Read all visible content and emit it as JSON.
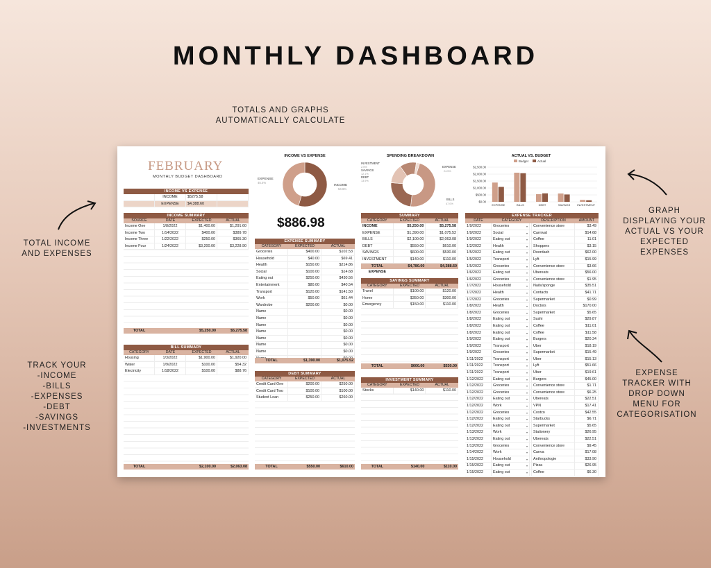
{
  "headline": "MONTHLY DASHBOARD",
  "notes": {
    "top": "TOTALS AND GRAPHS\nAUTOMATICALLY CALCULATE",
    "left_top": "TOTAL INCOME\nAND EXPENSES",
    "left_bottom": "TRACK YOUR\n-INCOME\n-BILLS\n-EXPENSES\n-DEBT\n-SAVINGS\n-INVESTMENTS",
    "right_top": "GRAPH\nDISPLAYING YOUR\nACTUAL VS YOUR\nEXPECTED\nEXPENSES",
    "right_bottom": "EXPENSE\nTRACKER WITH\nDROP DOWN\nMENU FOR\nCATEGORISATION"
  },
  "colors": {
    "brown": "#8e5a44",
    "tan": "#d9b3a1",
    "light": "#ecd5c8",
    "month": "#c79a85"
  },
  "dashboard": {
    "month": "FEBRUARY",
    "subtitle": "MONTHLY BUDGET DASHBOARD",
    "balance": "$886.98",
    "income_vs_expense": {
      "title": "INCOME VS EXPENSE",
      "rows": [
        [
          "INCOME",
          "$5275.58"
        ],
        [
          "EXPENSE",
          "$4,388.60"
        ]
      ]
    },
    "income_summary": {
      "title": "INCOME SUMMARY",
      "headers": [
        "SOURCE",
        "DATE",
        "EXPECTED",
        "ACTUAL"
      ],
      "rows": [
        [
          "Income One",
          "1/8/2022",
          "$1,400.00",
          "$1,291.60"
        ],
        [
          "Income Two",
          "1/14/2022",
          "$400.00",
          "$389.78"
        ],
        [
          "Income Three",
          "1/22/2022",
          "$250.00",
          "$365.30"
        ],
        [
          "Income Four",
          "1/24/2022",
          "$3,200.00",
          "$3,228.90"
        ]
      ],
      "total": [
        "TOTAL",
        "",
        "$5,250.00",
        "$5,275.58"
      ]
    },
    "bill_summary": {
      "title": "BILL SUMMARY",
      "headers": [
        "CATEGORY",
        "DATE",
        "EXPECTED",
        "ACTUAL"
      ],
      "rows": [
        [
          "Housing",
          "1/3/2022",
          "$1,900.00",
          "$1,920.00"
        ],
        [
          "Water",
          "1/9/2022",
          "$100.00",
          "$54.32"
        ],
        [
          "Electricity",
          "1/18/2022",
          "$100.00",
          "$88.76"
        ]
      ],
      "total": [
        "TOTAL",
        "",
        "$2,100.00",
        "$2,063.08"
      ]
    },
    "expense_summary": {
      "title": "EXPENSE SUMMARY",
      "headers": [
        "CATEGORY",
        "EXPECTED",
        "ACTUAL"
      ],
      "rows": [
        [
          "Groceries",
          "$400.00",
          "$102.53"
        ],
        [
          "Household",
          "$40.00",
          "$69.41"
        ],
        [
          "Health",
          "$150.00",
          "$214.86"
        ],
        [
          "Social",
          "$100.00",
          "$14.68"
        ],
        [
          "Eating out",
          "$250.00",
          "$430.56"
        ],
        [
          "Entertainment",
          "$80.00",
          "$40.54"
        ],
        [
          "Transport",
          "$120.00",
          "$141.50"
        ],
        [
          "Work",
          "$50.00",
          "$61.44"
        ],
        [
          "Wardrobe",
          "$200.00",
          "$0.00"
        ],
        [
          "Name",
          "",
          "$0.00"
        ],
        [
          "Name",
          "",
          "$0.00"
        ],
        [
          "Name",
          "",
          "$0.00"
        ],
        [
          "Name",
          "",
          "$0.00"
        ],
        [
          "Name",
          "",
          "$0.00"
        ],
        [
          "Name",
          "",
          "$0.00"
        ],
        [
          "Name",
          "",
          "$0.00"
        ],
        [
          "Name",
          "",
          "$0.00"
        ]
      ],
      "total": [
        "TOTAL",
        "$1,390.00",
        "$1,075.52"
      ]
    },
    "debt_summary": {
      "title": "DEBT SUMMARY",
      "headers": [
        "CATEGORY",
        "EXPECTED",
        "ACTUAL"
      ],
      "rows": [
        [
          "Credit Card One",
          "$200.00",
          "$250.00"
        ],
        [
          "Credit Card Two",
          "$100.00",
          "$100.00"
        ],
        [
          "Student Loan",
          "$250.00",
          "$260.00"
        ]
      ],
      "total": [
        "TOTAL",
        "$550.00",
        "$610.00"
      ]
    },
    "summary": {
      "title": "SUMMARY",
      "headers": [
        "CATEGORY",
        "EXPECTED",
        "ACTUAL"
      ],
      "rows": [
        [
          "INCOME",
          "$5,250.00",
          "$5,275.58"
        ],
        [
          "EXPENSE",
          "$1,390.00",
          "$1,075.52"
        ],
        [
          "BILLS",
          "$2,100.00",
          "$2,063.08"
        ],
        [
          "DEBT",
          "$550.00",
          "$610.00"
        ],
        [
          "SAVINGS",
          "$600.00",
          "$530.00"
        ],
        [
          "INVESTMENT",
          "$140.00",
          "$110.00"
        ]
      ],
      "total": [
        "TOTAL EXPENSE",
        "$4,780.00",
        "$4,388.60"
      ]
    },
    "savings_summary": {
      "title": "SAVINGS SUMMARY",
      "headers": [
        "CATEGORY",
        "EXPECTED",
        "ACTUAL"
      ],
      "rows": [
        [
          "Travel",
          "$100.00",
          "$120.00"
        ],
        [
          "Home",
          "$350.00",
          "$300.00"
        ],
        [
          "Emergency",
          "$150.00",
          "$110.00"
        ]
      ],
      "total": [
        "TOTAL",
        "$600.00",
        "$530.00"
      ]
    },
    "investment_summary": {
      "title": "INVESTMENT SUMMARY",
      "headers": [
        "CATEGORY",
        "EXPECTED",
        "ACTUAL"
      ],
      "rows": [
        [
          "Stocks",
          "$140.00",
          "$110.00"
        ]
      ],
      "total": [
        "TOTAL",
        "$140.00",
        "$110.00"
      ]
    },
    "expense_tracker": {
      "title": "EXPENSE TRACKER",
      "headers": [
        "DATE",
        "CATEGORY",
        "DESCRIPTION",
        "AMOUNT"
      ],
      "rows": [
        [
          "1/9/2022",
          "Groceries",
          "Convenience store",
          "$3.49"
        ],
        [
          "1/9/2022",
          "Social",
          "Carnival",
          "$14.68"
        ],
        [
          "1/9/2022",
          "Eating out",
          "Coffee",
          "11.01"
        ],
        [
          "1/2/2022",
          "Health",
          "Shoppers",
          "$3.15"
        ],
        [
          "1/5/2022",
          "Eating out",
          "Doordash",
          "$62.00"
        ],
        [
          "1/5/2022",
          "Transport",
          "Lyft",
          "$15.99"
        ],
        [
          "1/5/2022",
          "Groceries",
          "Convenience store",
          "$3.66"
        ],
        [
          "1/6/2022",
          "Eating out",
          "Ubereats",
          "$56.00"
        ],
        [
          "1/6/2022",
          "Groceries",
          "Convenience store",
          "$1.95"
        ],
        [
          "1/7/2022",
          "Household",
          "Nails/sponge",
          "$35.51"
        ],
        [
          "1/7/2022",
          "Health",
          "Contacts",
          "$41.71"
        ],
        [
          "1/7/2022",
          "Groceries",
          "Supermarket",
          "$0.99"
        ],
        [
          "1/8/2022",
          "Health",
          "Doctors",
          "$170.00"
        ],
        [
          "1/8/2022",
          "Groceries",
          "Supermarket",
          "$5.65"
        ],
        [
          "1/8/2022",
          "Eating out",
          "Sushi",
          "$29.87"
        ],
        [
          "1/8/2022",
          "Eating out",
          "Coffee",
          "$11.01"
        ],
        [
          "1/8/2022",
          "Eating out",
          "Coffee",
          "$11.58"
        ],
        [
          "1/9/2022",
          "Eating out",
          "Burgers",
          "$20.34"
        ],
        [
          "1/9/2022",
          "Transport",
          "Uber",
          "$18.19"
        ],
        [
          "1/9/2022",
          "Groceries",
          "Supermarket",
          "$15.49"
        ],
        [
          "1/11/2022",
          "Transport",
          "Uber",
          "$15.13"
        ],
        [
          "1/11/2022",
          "Transport",
          "Lyft",
          "$51.66"
        ],
        [
          "1/11/2022",
          "Transport",
          "Uber",
          "$19.61"
        ],
        [
          "1/12/2022",
          "Eating out",
          "Burgers",
          "$45.00"
        ],
        [
          "1/12/2022",
          "Groceries",
          "Convenience store",
          "$1.71"
        ],
        [
          "1/12/2022",
          "Groceries",
          "Convenience store",
          "$6.25"
        ],
        [
          "1/12/2022",
          "Eating out",
          "Ubereats",
          "$22.51"
        ],
        [
          "1/12/2022",
          "Work",
          "VPN",
          "$17.41"
        ],
        [
          "1/12/2022",
          "Groceries",
          "Costco",
          "$42.55"
        ],
        [
          "1/12/2022",
          "Eating out",
          "Starbucks",
          "$6.71"
        ],
        [
          "1/12/2022",
          "Eating out",
          "Supermarket",
          "$5.65"
        ],
        [
          "1/13/2022",
          "Work",
          "Stationery",
          "$26.95"
        ],
        [
          "1/13/2022",
          "Eating out",
          "Ubereats",
          "$22.51"
        ],
        [
          "1/13/2022",
          "Groceries",
          "Convenience store",
          "$9.45"
        ],
        [
          "1/14/2022",
          "Work",
          "Canva",
          "$17.08"
        ],
        [
          "1/15/2022",
          "Household",
          "Anthropologie",
          "$33.90"
        ],
        [
          "1/15/2022",
          "Eating out",
          "Pizza",
          "$26.95"
        ],
        [
          "1/15/2022",
          "Eating out",
          "Coffee",
          "$6.30"
        ]
      ]
    }
  },
  "charts": {
    "income_vs_expense": {
      "title": "INCOME VS EXPENSE",
      "labels": [
        "EXPENSE",
        "INCOME"
      ],
      "pcts": [
        "45.4%",
        "54.6%"
      ]
    },
    "spending_breakdown": {
      "title": "SPENDING BREAKDOWN",
      "labels": [
        "INVESTMENT",
        "SAVINGS",
        "DEBT",
        "EXPENSE",
        "BILLS"
      ],
      "pcts": [
        "2.5%",
        "12.1%",
        "13.9%",
        "24.5%",
        "47.0%"
      ]
    }
  },
  "chart_data": [
    {
      "type": "pie",
      "title": "INCOME VS EXPENSE",
      "categories": [
        "INCOME",
        "EXPENSE"
      ],
      "values": [
        54.6,
        45.4
      ]
    },
    {
      "type": "pie",
      "title": "SPENDING BREAKDOWN",
      "categories": [
        "BILLS",
        "EXPENSE",
        "DEBT",
        "SAVINGS",
        "INVESTMENT"
      ],
      "values": [
        47.0,
        24.5,
        13.9,
        12.1,
        2.5
      ]
    },
    {
      "type": "bar",
      "title": "ACTUAL VS. BUDGET",
      "categories": [
        "EXPENSE",
        "BILLS",
        "DEBT",
        "SAVINGS",
        "INVESTMENT"
      ],
      "series": [
        {
          "name": "Budget",
          "values": [
            1390,
            2100,
            550,
            600,
            140
          ]
        },
        {
          "name": "Actual",
          "values": [
            1075.52,
            2063.08,
            610,
            530,
            110
          ]
        }
      ],
      "yticks": [
        "$0.00",
        "$500.00",
        "$1,000.00",
        "$1,500.00",
        "$2,000.00",
        "$2,500.00"
      ],
      "ylim": [
        0,
        2500
      ],
      "legend": "top"
    }
  ]
}
